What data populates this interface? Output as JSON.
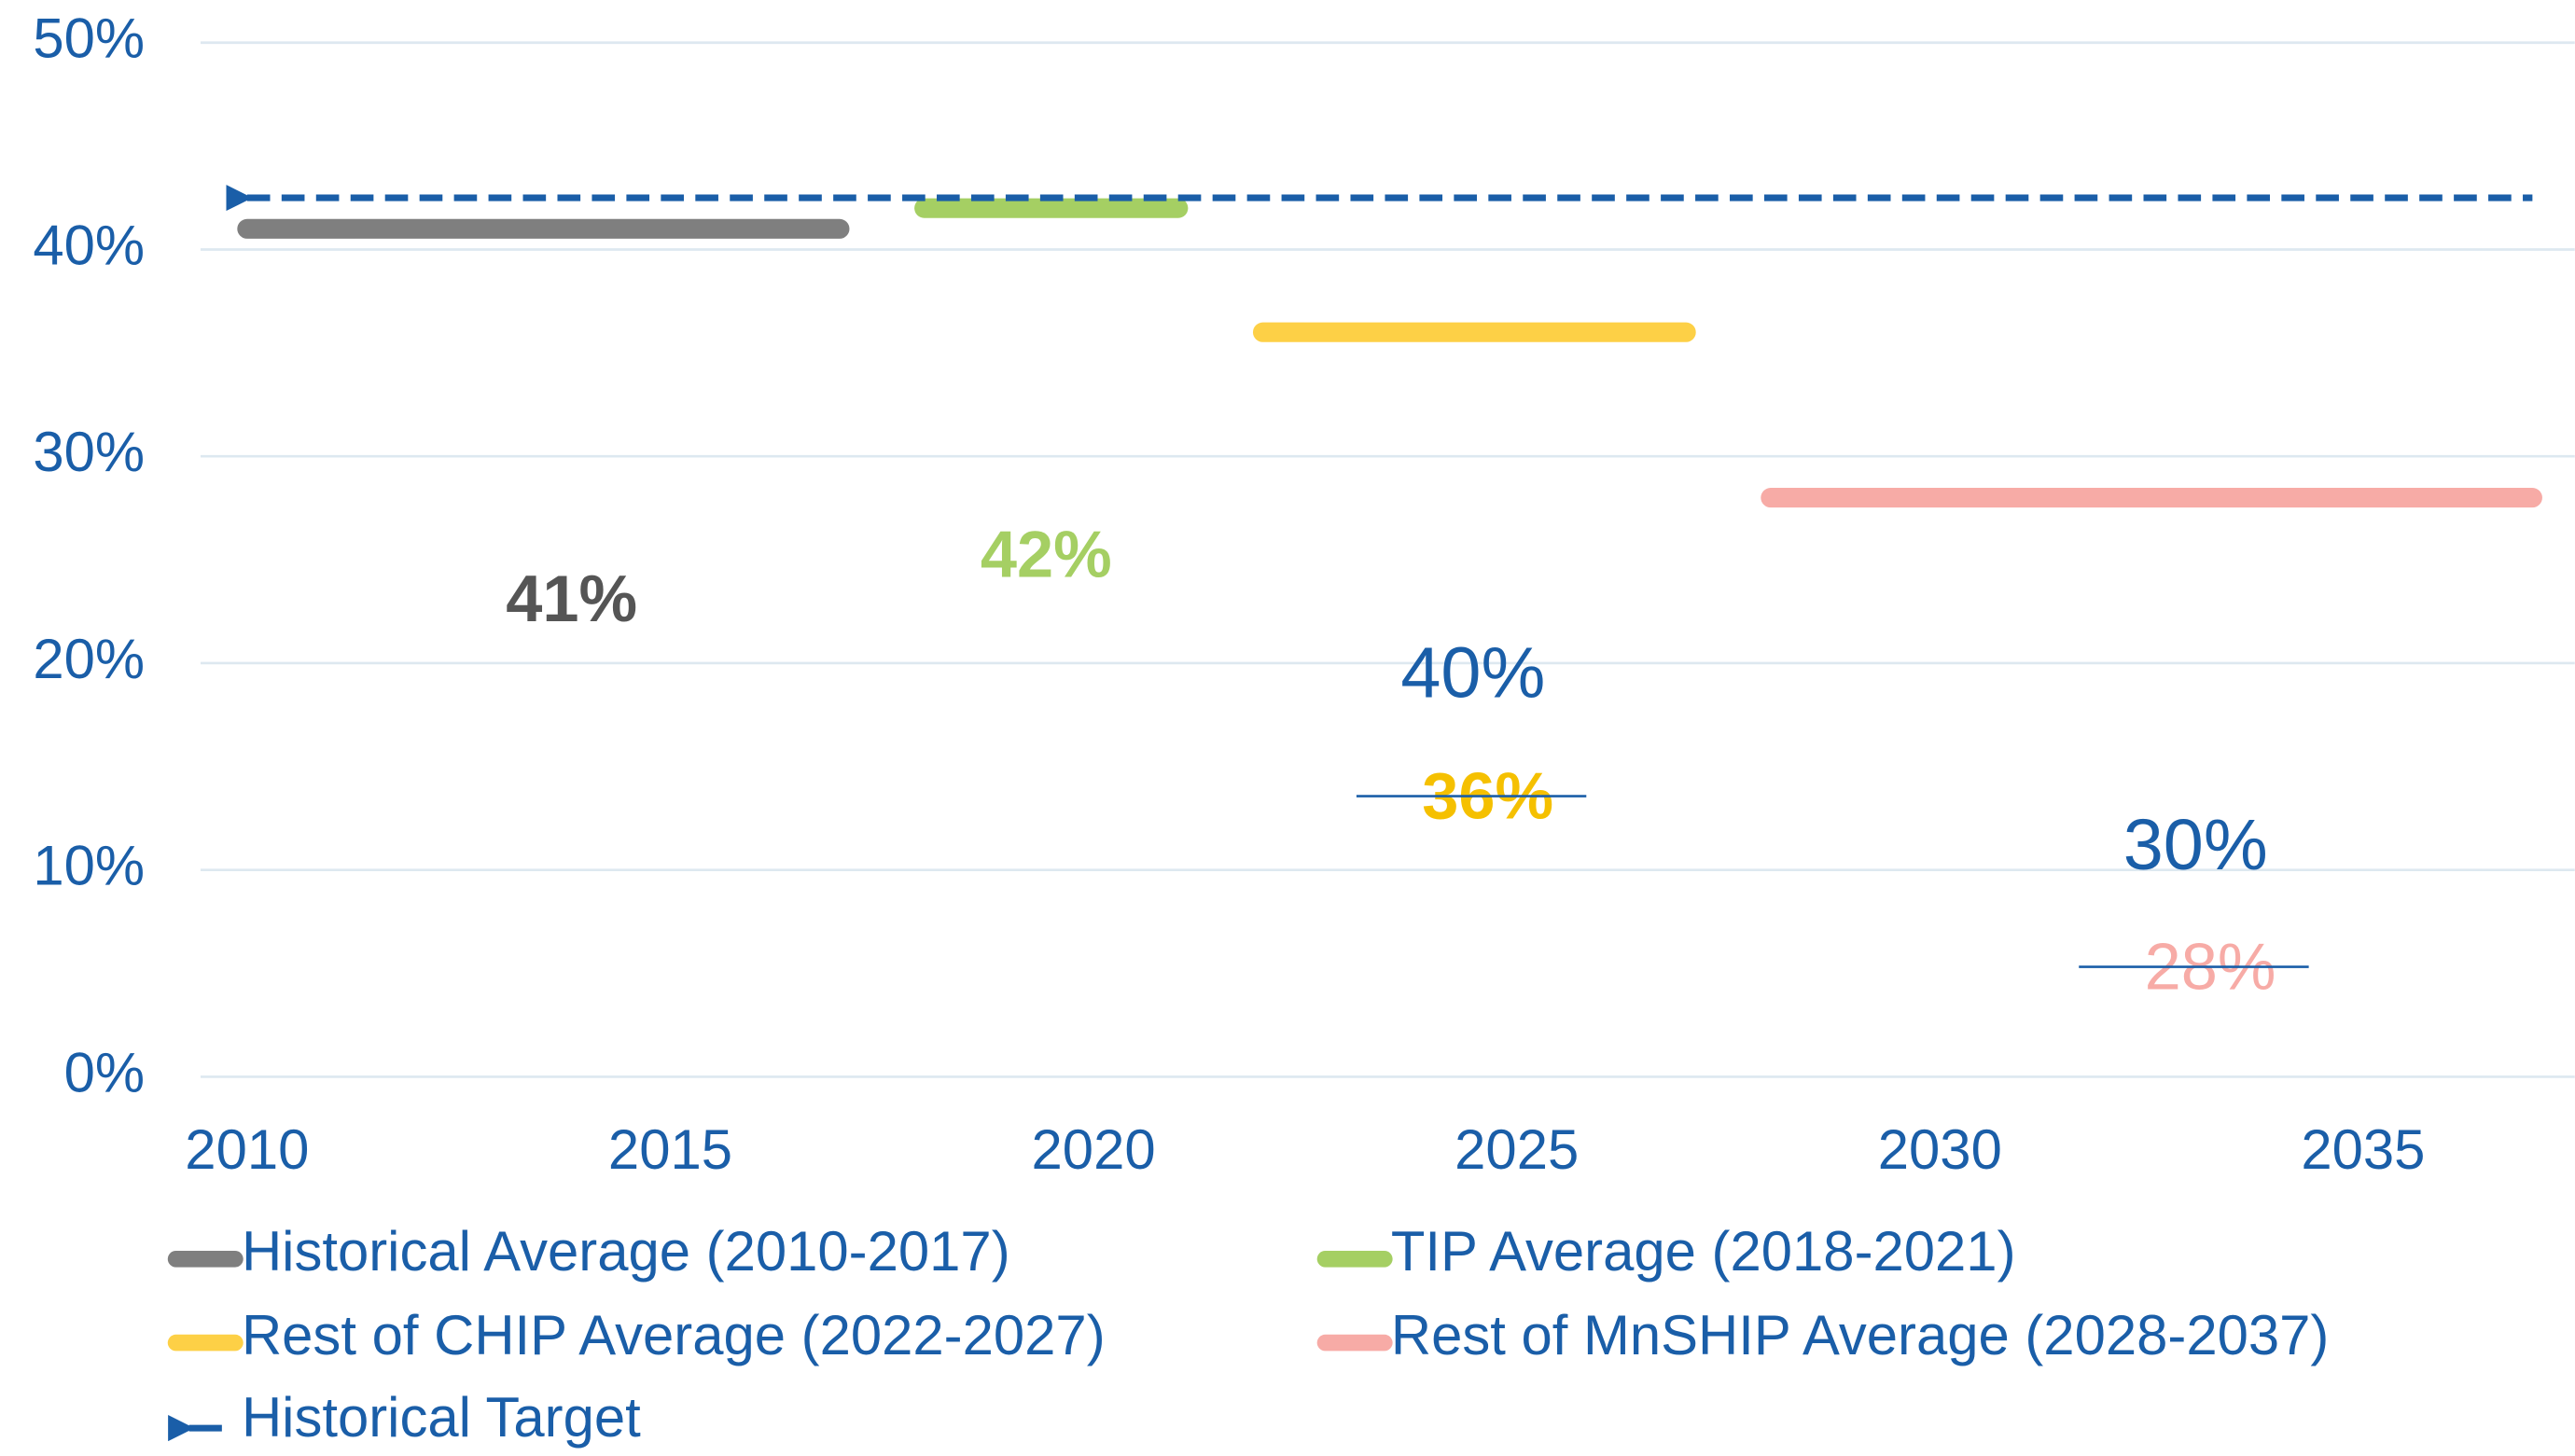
{
  "chart_data": {
    "type": "line",
    "xlim": [
      2009.45,
      2037.5
    ],
    "xticks": [
      2010,
      2015,
      2020,
      2025,
      2030,
      2035
    ],
    "ylim": [
      0,
      50
    ],
    "yticks": [
      {
        "value": 0,
        "label": "0%"
      },
      {
        "value": 10,
        "label": "10%"
      },
      {
        "value": 20,
        "label": "20%"
      },
      {
        "value": 30,
        "label": "30%"
      },
      {
        "value": 40,
        "label": "40%"
      },
      {
        "value": 50,
        "label": "50%"
      }
    ],
    "grid": true,
    "legend": "bottom",
    "series": [
      {
        "name": "Historical Average (2010-2017)",
        "color": "#7f7f7f",
        "x": [
          2010,
          2017
        ],
        "values": [
          41,
          41
        ],
        "value_labels": [
          "41%",
          null
        ]
      },
      {
        "name": "TIP Average (2018-2021)",
        "color": "#a5cf63",
        "x": [
          2018,
          2021
        ],
        "values": [
          42,
          42
        ],
        "value_labels": [
          "42%",
          null
        ]
      },
      {
        "name": "Rest of CHIP Average (2022-2027)",
        "color": "#fdd046",
        "x": [
          2022,
          2027
        ],
        "values": [
          36,
          36
        ],
        "value_labels": [
          "36%",
          null
        ],
        "struck": true
      },
      {
        "name": "Rest of MnSHIP Average (2028-2037)",
        "color": "#f7aba6",
        "x": [
          2028,
          2037
        ],
        "values": [
          28,
          28
        ],
        "value_labels": [
          "28%",
          null
        ],
        "struck": true
      },
      {
        "name": "Historical Target",
        "color": "#1a5ea8",
        "x": [
          2010,
          2037
        ],
        "values": [
          42.5,
          42.5
        ],
        "style": "dashed-arrow"
      }
    ],
    "annotations": [
      "40%",
      "30%"
    ]
  }
}
